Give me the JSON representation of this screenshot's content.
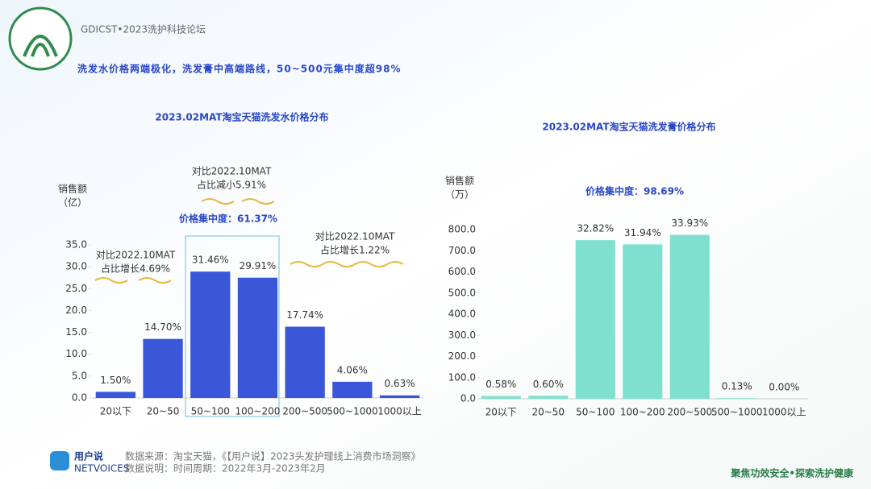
{
  "header": {
    "brand": "GDICST•2023洗护科技论坛",
    "title": "洗发水价格两端极化，洗发膏中高端路线，50~500元集中度超98%"
  },
  "footer": {
    "logo": "用户说",
    "logo_sub": "NETVOICES",
    "source": "数据来源：淘宝天猫，《【用户说】2023头发护理线上消费市场洞察》",
    "note": "数据说明：时间周期：2022年3月-2023年2月",
    "slogan": "聚焦功效安全•探索洗护健康"
  },
  "chart_data": [
    {
      "type": "bar",
      "title": "2023.02MAT淘宝天猫洗发水价格分布",
      "y_label": [
        "销售额",
        "（亿）"
      ],
      "categories": [
        "20以下",
        "20~50",
        "50~100",
        "100~200",
        "200~500",
        "500~1000",
        "1000以上"
      ],
      "values": [
        1.4,
        13.5,
        28.9,
        27.5,
        16.3,
        3.7,
        0.6
      ],
      "share_labels": [
        "1.50%",
        "14.70%",
        "31.46%",
        "29.91%",
        "17.74%",
        "4.06%",
        "0.63%"
      ],
      "color": "#3a57d9",
      "ylim": [
        0,
        35
      ],
      "yticks": [
        {
          "value": 0,
          "label": "0.0"
        },
        {
          "value": 5,
          "label": "5.0"
        },
        {
          "value": 10,
          "label": "10.0"
        },
        {
          "value": 15,
          "label": "15.0"
        },
        {
          "value": 20,
          "label": "20.0"
        },
        {
          "value": 25,
          "label": "25.0"
        },
        {
          "value": 30,
          "label": "30.0"
        },
        {
          "value": 35,
          "label": "35.0"
        }
      ],
      "annotations": [
        {
          "lines": [
            "对比2022.10MAT",
            "占比增长4.69%"
          ]
        },
        {
          "lines": [
            "对比2022.10MAT",
            "占比减小5.91%"
          ]
        },
        {
          "lines": [
            "价格集中度：61.37%"
          ]
        },
        {
          "lines": [
            "对比2022.10MAT",
            "占比增长1.22%"
          ]
        }
      ]
    },
    {
      "type": "bar",
      "title": "2023.02MAT淘宝天猫洗发膏价格分布",
      "y_label": [
        "销售额",
        "（万）"
      ],
      "categories": [
        "20以下",
        "20~50",
        "50~100",
        "100~200",
        "200~500",
        "500~1000",
        "1000以上"
      ],
      "values": [
        13,
        14,
        750,
        730,
        775,
        3,
        0
      ],
      "share_labels": [
        "0.58%",
        "0.60%",
        "32.82%",
        "31.94%",
        "33.93%",
        "0.13%",
        "0.00%"
      ],
      "color": "#7fe0cf",
      "ylim": [
        0,
        800
      ],
      "yticks": [
        {
          "value": 0,
          "label": "0.0"
        },
        {
          "value": 100,
          "label": "100.0"
        },
        {
          "value": 200,
          "label": "200.0"
        },
        {
          "value": 300,
          "label": "300.0"
        },
        {
          "value": 400,
          "label": "400.0"
        },
        {
          "value": 500,
          "label": "500.0"
        },
        {
          "value": 600,
          "label": "600.0"
        },
        {
          "value": 700,
          "label": "700.0"
        },
        {
          "value": 800,
          "label": "800.0"
        }
      ],
      "annotations": [
        {
          "lines": [
            "价格集中度：98.69%"
          ]
        }
      ]
    }
  ]
}
